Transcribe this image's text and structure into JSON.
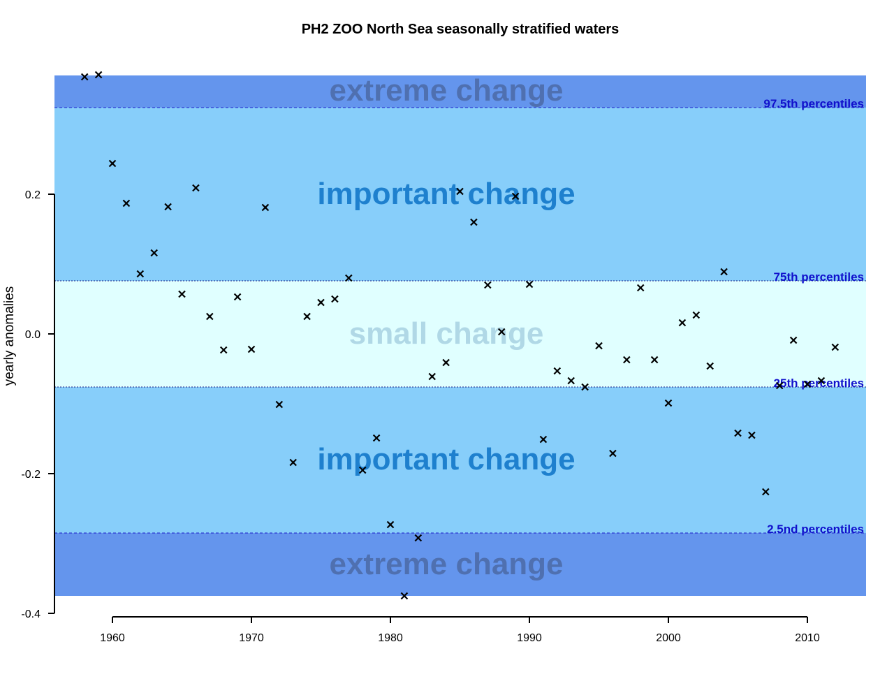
{
  "chart_data": {
    "type": "scatter",
    "title": "PH2 ZOO North Sea seasonally stratified waters",
    "xlabel": "",
    "ylabel": "yearly anomalies",
    "xlim": [
      1955.9,
      2014.3
    ],
    "ylim": [
      -0.4,
      0.37
    ],
    "x_ticks": [
      1960,
      1970,
      1980,
      1990,
      2000,
      2010
    ],
    "x_tick_labels": [
      "1960",
      "1970",
      "1980",
      "1990",
      "2000",
      "2010"
    ],
    "y_ticks": [
      -0.4,
      -0.2,
      0.0,
      0.2
    ],
    "y_tick_labels": [
      "-0.4",
      "-0.2",
      "0.0",
      "0.2"
    ],
    "grid": false,
    "marker": "x",
    "bands": [
      {
        "name": "extreme change",
        "from": 0.324,
        "to": 0.37,
        "color": "#6495ED",
        "label_color": "#4F70B0"
      },
      {
        "name": "important change",
        "from": 0.076,
        "to": 0.324,
        "color": "#87CEFA",
        "label_color": "#1E80CE"
      },
      {
        "name": "small change",
        "from": -0.076,
        "to": 0.076,
        "color": "#E0FFFF",
        "label_color": "#B0D8E6"
      },
      {
        "name": "important change",
        "from": -0.285,
        "to": -0.076,
        "color": "#87CEFA",
        "label_color": "#1E80CE"
      },
      {
        "name": "extreme change",
        "from": -0.375,
        "to": -0.285,
        "color": "#6495ED",
        "label_color": "#4F70B0"
      }
    ],
    "band_labels": [
      {
        "text": "extreme change",
        "y": 0.35
      },
      {
        "text": "important change",
        "y": 0.202
      },
      {
        "text": "small change",
        "y": 0.002
      },
      {
        "text": "important change",
        "y": -0.178
      },
      {
        "text": "extreme change",
        "y": -0.328
      }
    ],
    "percentile_lines": [
      {
        "label": "97.5th percentiles",
        "value": 0.324,
        "style": "dashed"
      },
      {
        "label": "75th percentiles",
        "value": 0.076,
        "style": "dotted"
      },
      {
        "label": "25th percentiles",
        "value": -0.076,
        "style": "dotted"
      },
      {
        "label": "2.5nd percentiles",
        "value": -0.285,
        "style": "dashed"
      }
    ],
    "percentile_label_color": "#1010CC",
    "series": [
      {
        "name": "yearly anomalies",
        "x": [
          1958,
          1959,
          1960,
          1961,
          1962,
          1963,
          1964,
          1965,
          1966,
          1967,
          1968,
          1969,
          1970,
          1971,
          1972,
          1973,
          1974,
          1975,
          1976,
          1977,
          1978,
          1979,
          1980,
          1981,
          1982,
          1983,
          1984,
          1985,
          1986,
          1987,
          1988,
          1989,
          1990,
          1991,
          1992,
          1993,
          1994,
          1995,
          1996,
          1997,
          1998,
          1999,
          2000,
          2001,
          2002,
          2003,
          2004,
          2005,
          2006,
          2007,
          2008,
          2009,
          2010,
          2011,
          2012
        ],
        "y": [
          0.368,
          0.371,
          0.244,
          0.187,
          0.086,
          0.116,
          0.182,
          0.057,
          0.209,
          0.025,
          -0.023,
          0.053,
          -0.022,
          0.181,
          -0.101,
          -0.184,
          0.025,
          0.045,
          0.05,
          0.08,
          -0.195,
          -0.149,
          -0.273,
          -0.375,
          -0.292,
          -0.061,
          -0.041,
          0.204,
          0.16,
          0.07,
          0.003,
          0.197,
          0.071,
          -0.151,
          -0.053,
          -0.067,
          -0.076,
          -0.017,
          -0.171,
          -0.037,
          0.066,
          -0.037,
          -0.099,
          0.016,
          0.027,
          -0.046,
          0.089,
          -0.142,
          -0.145,
          -0.226,
          -0.074,
          -0.009,
          -0.072,
          -0.067,
          -0.019
        ]
      }
    ]
  }
}
